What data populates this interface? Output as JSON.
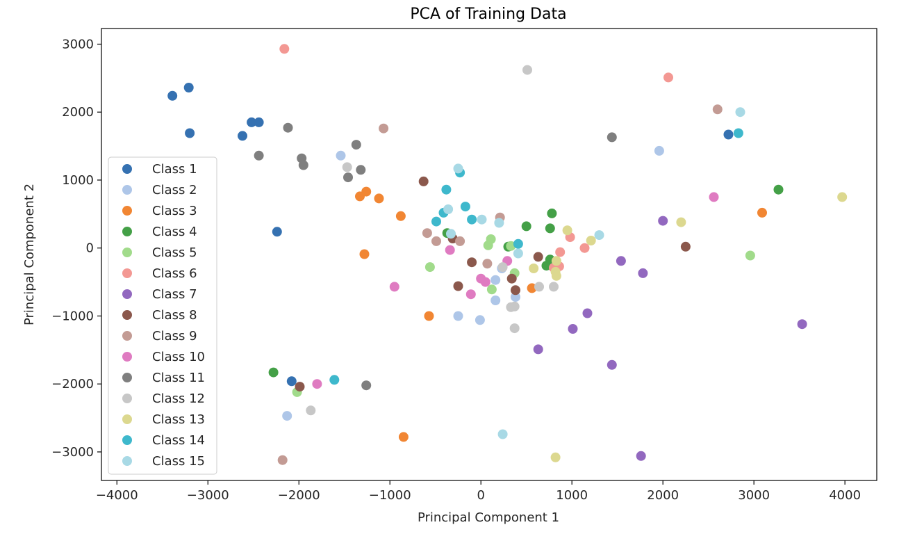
{
  "chart_data": {
    "type": "scatter",
    "title": "PCA of Training Data",
    "xlabel": "Principal Component 1",
    "ylabel": "Principal Component 2",
    "xlim": [
      -4170,
      4350
    ],
    "ylim": [
      -3420,
      3230
    ],
    "xticks": [
      -4000,
      -3000,
      -2000,
      -1000,
      0,
      1000,
      2000,
      3000,
      4000
    ],
    "yticks": [
      -3000,
      -2000,
      -1000,
      0,
      1000,
      2000,
      3000
    ],
    "grid": false,
    "legend_position": "center-left",
    "series": [
      {
        "name": "Class 1",
        "color": "#3571b1",
        "points": [
          [
            -3390,
            2240
          ],
          [
            -3210,
            2360
          ],
          [
            -3200,
            1690
          ],
          [
            -2520,
            1850
          ],
          [
            -2440,
            1850
          ],
          [
            -2620,
            1650
          ],
          [
            -2240,
            240
          ],
          [
            -2080,
            -1960
          ],
          [
            2720,
            1670
          ]
        ]
      },
      {
        "name": "Class 2",
        "color": "#aec6e8",
        "points": [
          [
            -1540,
            1360
          ],
          [
            -2130,
            -2470
          ],
          [
            -250,
            -1000
          ],
          [
            -10,
            -1060
          ],
          [
            160,
            -770
          ],
          [
            160,
            -470
          ],
          [
            230,
            -300
          ],
          [
            380,
            -720
          ],
          [
            1960,
            1430
          ]
        ]
      },
      {
        "name": "Class 3",
        "color": "#f18633",
        "points": [
          [
            -1330,
            760
          ],
          [
            -1260,
            830
          ],
          [
            -1120,
            730
          ],
          [
            -1280,
            -90
          ],
          [
            -880,
            470
          ],
          [
            -570,
            -1000
          ],
          [
            -850,
            -2780
          ],
          [
            560,
            -590
          ],
          [
            3090,
            520
          ]
        ]
      },
      {
        "name": "Class 4",
        "color": "#44a047",
        "points": [
          [
            -2280,
            -1830
          ],
          [
            -370,
            220
          ],
          [
            300,
            20
          ],
          [
            500,
            320
          ],
          [
            760,
            290
          ],
          [
            780,
            510
          ],
          [
            720,
            -260
          ],
          [
            760,
            -170
          ],
          [
            3270,
            860
          ]
        ]
      },
      {
        "name": "Class 5",
        "color": "#a1db8b",
        "points": [
          [
            -560,
            -280
          ],
          [
            80,
            40
          ],
          [
            110,
            130
          ],
          [
            120,
            -610
          ],
          [
            330,
            30
          ],
          [
            370,
            -370
          ],
          [
            -2020,
            -2120
          ],
          [
            2960,
            -110
          ]
        ]
      },
      {
        "name": "Class 6",
        "color": "#f39893",
        "points": [
          [
            -2160,
            2930
          ],
          [
            2060,
            2510
          ],
          [
            980,
            160
          ],
          [
            1140,
            0
          ],
          [
            870,
            -60
          ],
          [
            800,
            -290
          ],
          [
            860,
            -270
          ]
        ]
      },
      {
        "name": "Class 7",
        "color": "#9268bf",
        "points": [
          [
            1540,
            -190
          ],
          [
            1780,
            -370
          ],
          [
            2000,
            400
          ],
          [
            1170,
            -960
          ],
          [
            1010,
            -1190
          ],
          [
            630,
            -1490
          ],
          [
            1440,
            -1720
          ],
          [
            1760,
            -3060
          ],
          [
            3530,
            -1120
          ]
        ]
      },
      {
        "name": "Class 8",
        "color": "#8b584c",
        "points": [
          [
            -630,
            980
          ],
          [
            -310,
            140
          ],
          [
            -100,
            -210
          ],
          [
            -250,
            -560
          ],
          [
            340,
            -450
          ],
          [
            380,
            -620
          ],
          [
            630,
            -130
          ],
          [
            2250,
            20
          ],
          [
            -1990,
            -2040
          ]
        ]
      },
      {
        "name": "Class 9",
        "color": "#c39b94",
        "points": [
          [
            -1070,
            1760
          ],
          [
            -590,
            220
          ],
          [
            -490,
            100
          ],
          [
            -230,
            100
          ],
          [
            70,
            -230
          ],
          [
            210,
            450
          ],
          [
            2600,
            2040
          ],
          [
            -2180,
            -3120
          ]
        ]
      },
      {
        "name": "Class 10",
        "color": "#df7bc1",
        "points": [
          [
            -950,
            -570
          ],
          [
            -340,
            -30
          ],
          [
            -110,
            -680
          ],
          [
            0,
            -450
          ],
          [
            50,
            -500
          ],
          [
            290,
            -190
          ],
          [
            -1800,
            -2000
          ],
          [
            2560,
            750
          ]
        ]
      },
      {
        "name": "Class 11",
        "color": "#7f7f7f",
        "points": [
          [
            -2440,
            1360
          ],
          [
            -2120,
            1770
          ],
          [
            -1970,
            1320
          ],
          [
            -1950,
            1220
          ],
          [
            -1370,
            1520
          ],
          [
            -1320,
            1150
          ],
          [
            -1460,
            1040
          ],
          [
            -1260,
            -2020
          ],
          [
            1440,
            1630
          ]
        ]
      },
      {
        "name": "Class 12",
        "color": "#c7c7c7",
        "points": [
          [
            -1470,
            1190
          ],
          [
            -1870,
            -2390
          ],
          [
            240,
            -280
          ],
          [
            330,
            -870
          ],
          [
            370,
            -860
          ],
          [
            370,
            -1180
          ],
          [
            640,
            -570
          ],
          [
            800,
            -570
          ],
          [
            510,
            2620
          ]
        ]
      },
      {
        "name": "Class 13",
        "color": "#dcd88f",
        "points": [
          [
            950,
            260
          ],
          [
            1210,
            110
          ],
          [
            830,
            -190
          ],
          [
            820,
            -350
          ],
          [
            830,
            -410
          ],
          [
            580,
            -300
          ],
          [
            2200,
            380
          ],
          [
            3970,
            750
          ],
          [
            820,
            -3080
          ]
        ]
      },
      {
        "name": "Class 14",
        "color": "#3eb8cc",
        "points": [
          [
            -380,
            860
          ],
          [
            -230,
            1110
          ],
          [
            -410,
            520
          ],
          [
            -490,
            390
          ],
          [
            -170,
            610
          ],
          [
            -100,
            420
          ],
          [
            410,
            60
          ],
          [
            2830,
            1690
          ],
          [
            -1610,
            -1940
          ]
        ]
      },
      {
        "name": "Class 15",
        "color": "#a8d9e5",
        "points": [
          [
            -250,
            1170
          ],
          [
            -360,
            570
          ],
          [
            -330,
            210
          ],
          [
            10,
            420
          ],
          [
            200,
            370
          ],
          [
            410,
            -80
          ],
          [
            1300,
            190
          ],
          [
            2850,
            2000
          ],
          [
            240,
            -2740
          ]
        ]
      }
    ]
  }
}
